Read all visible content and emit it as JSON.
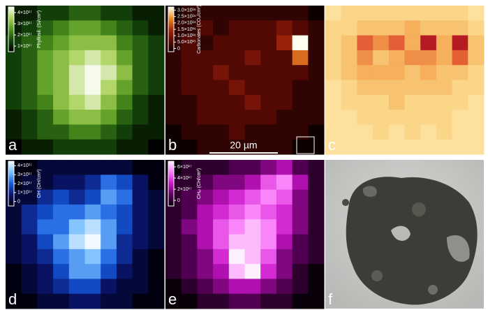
{
  "panels": [
    {
      "label": "a",
      "colormap": "green",
      "colorbar": {
        "title": "Phyllosil. (Si/cm²)",
        "ticks": [
          "4×10¹⁷",
          "3×10¹⁷",
          "2×10¹⁷",
          "1×10¹⁷"
        ]
      },
      "grid": [
        [
          1,
          1,
          2,
          2,
          3,
          3,
          2,
          2,
          1,
          1
        ],
        [
          1,
          2,
          3,
          4,
          5,
          5,
          4,
          3,
          2,
          1
        ],
        [
          2,
          3,
          4,
          5,
          6,
          6,
          6,
          4,
          3,
          2
        ],
        [
          2,
          3,
          5,
          6,
          7,
          8,
          7,
          5,
          3,
          2
        ],
        [
          2,
          3,
          5,
          6,
          8,
          9,
          8,
          6,
          3,
          2
        ],
        [
          2,
          3,
          5,
          6,
          8,
          9,
          7,
          5,
          3,
          2
        ],
        [
          2,
          3,
          4,
          6,
          7,
          8,
          6,
          4,
          2,
          1
        ],
        [
          1,
          2,
          3,
          5,
          6,
          6,
          5,
          3,
          2,
          1
        ],
        [
          1,
          2,
          3,
          3,
          4,
          4,
          3,
          2,
          1,
          1
        ],
        [
          0,
          1,
          1,
          2,
          2,
          2,
          2,
          1,
          1,
          0
        ]
      ]
    },
    {
      "label": "b",
      "colormap": "hot",
      "colorbar": {
        "title": "Carbonates (CO₃/cm²)",
        "ticks": [
          "3.0×10¹⁶",
          "2.5×10¹⁶",
          "2.0×10¹⁶",
          "1.5×10¹⁶",
          "1.0×10¹⁶",
          "5.0×10¹⁵",
          "0"
        ]
      },
      "grid": [
        [
          0,
          1,
          1,
          1,
          1,
          1,
          1,
          1,
          1,
          0
        ],
        [
          1,
          1,
          2,
          1,
          2,
          2,
          2,
          3,
          2,
          1
        ],
        [
          1,
          2,
          1,
          2,
          2,
          2,
          2,
          4,
          9,
          1
        ],
        [
          1,
          2,
          2,
          2,
          2,
          3,
          2,
          2,
          6,
          1
        ],
        [
          1,
          2,
          2,
          3,
          2,
          2,
          2,
          2,
          2,
          1
        ],
        [
          1,
          2,
          2,
          2,
          3,
          2,
          2,
          2,
          1,
          1
        ],
        [
          1,
          1,
          2,
          2,
          2,
          3,
          2,
          2,
          1,
          1
        ],
        [
          1,
          1,
          2,
          2,
          2,
          2,
          2,
          1,
          1,
          1
        ],
        [
          0,
          1,
          1,
          1,
          2,
          1,
          1,
          1,
          1,
          0
        ],
        [
          0,
          0,
          1,
          1,
          1,
          1,
          1,
          1,
          0,
          0
        ]
      ]
    },
    {
      "label": "c",
      "colormap": "ylred",
      "grid": [
        [
          1,
          2,
          2,
          2,
          2,
          2,
          2,
          2,
          2,
          1
        ],
        [
          2,
          2,
          3,
          3,
          3,
          4,
          3,
          3,
          3,
          2
        ],
        [
          2,
          3,
          6,
          5,
          6,
          4,
          8,
          4,
          8,
          3
        ],
        [
          2,
          3,
          5,
          3,
          4,
          5,
          5,
          4,
          6,
          3
        ],
        [
          2,
          3,
          4,
          4,
          4,
          3,
          4,
          3,
          3,
          2
        ],
        [
          1,
          2,
          3,
          3,
          3,
          3,
          3,
          3,
          2,
          2
        ],
        [
          1,
          2,
          2,
          2,
          3,
          2,
          2,
          2,
          2,
          1
        ],
        [
          1,
          1,
          2,
          2,
          2,
          2,
          2,
          2,
          1,
          1
        ],
        [
          1,
          1,
          1,
          2,
          1,
          2,
          1,
          2,
          1,
          1
        ],
        [
          1,
          1,
          1,
          1,
          1,
          1,
          1,
          1,
          1,
          1
        ]
      ]
    },
    {
      "label": "d",
      "colormap": "blue",
      "colorbar": {
        "title": "OH (OH/cm²)",
        "ticks": [
          "4×10¹⁷",
          "3×10¹⁷",
          "2×10¹⁷",
          "1×10¹⁷",
          "0"
        ]
      },
      "grid": [
        [
          0,
          0,
          1,
          1,
          1,
          1,
          1,
          1,
          0,
          0
        ],
        [
          0,
          1,
          1,
          2,
          2,
          3,
          5,
          4,
          2,
          0
        ],
        [
          1,
          1,
          3,
          4,
          3,
          4,
          6,
          5,
          2,
          1
        ],
        [
          1,
          3,
          4,
          5,
          5,
          6,
          5,
          4,
          2,
          1
        ],
        [
          1,
          3,
          5,
          5,
          7,
          8,
          6,
          4,
          2,
          1
        ],
        [
          1,
          2,
          4,
          6,
          8,
          9,
          6,
          3,
          2,
          1
        ],
        [
          1,
          2,
          3,
          5,
          6,
          7,
          5,
          3,
          1,
          0
        ],
        [
          0,
          1,
          2,
          4,
          6,
          6,
          4,
          2,
          1,
          0
        ],
        [
          0,
          1,
          2,
          3,
          4,
          4,
          2,
          1,
          1,
          0
        ],
        [
          0,
          0,
          1,
          1,
          2,
          2,
          1,
          1,
          0,
          0
        ]
      ]
    },
    {
      "label": "e",
      "colormap": "magenta",
      "colorbar": {
        "title": "CHₐₗ (CH/cm²)",
        "ticks": [
          "6×10¹⁷",
          "4×10¹⁷",
          "2×10¹⁷",
          "0"
        ]
      },
      "grid": [
        [
          0,
          1,
          1,
          1,
          2,
          2,
          3,
          4,
          2,
          1
        ],
        [
          1,
          1,
          2,
          3,
          3,
          4,
          6,
          7,
          4,
          1
        ],
        [
          1,
          2,
          3,
          4,
          5,
          6,
          7,
          6,
          3,
          1
        ],
        [
          1,
          2,
          4,
          5,
          6,
          7,
          6,
          5,
          3,
          1
        ],
        [
          1,
          3,
          4,
          6,
          7,
          8,
          7,
          5,
          3,
          1
        ],
        [
          1,
          2,
          4,
          6,
          8,
          8,
          7,
          4,
          2,
          1
        ],
        [
          1,
          2,
          3,
          5,
          9,
          8,
          6,
          3,
          2,
          1
        ],
        [
          1,
          2,
          3,
          4,
          8,
          9,
          5,
          3,
          1,
          0
        ],
        [
          0,
          1,
          2,
          3,
          4,
          4,
          3,
          2,
          1,
          0
        ],
        [
          0,
          0,
          1,
          1,
          2,
          2,
          1,
          1,
          0,
          0
        ]
      ]
    },
    {
      "label": "f"
    }
  ],
  "scale_bar": "20 µm"
}
